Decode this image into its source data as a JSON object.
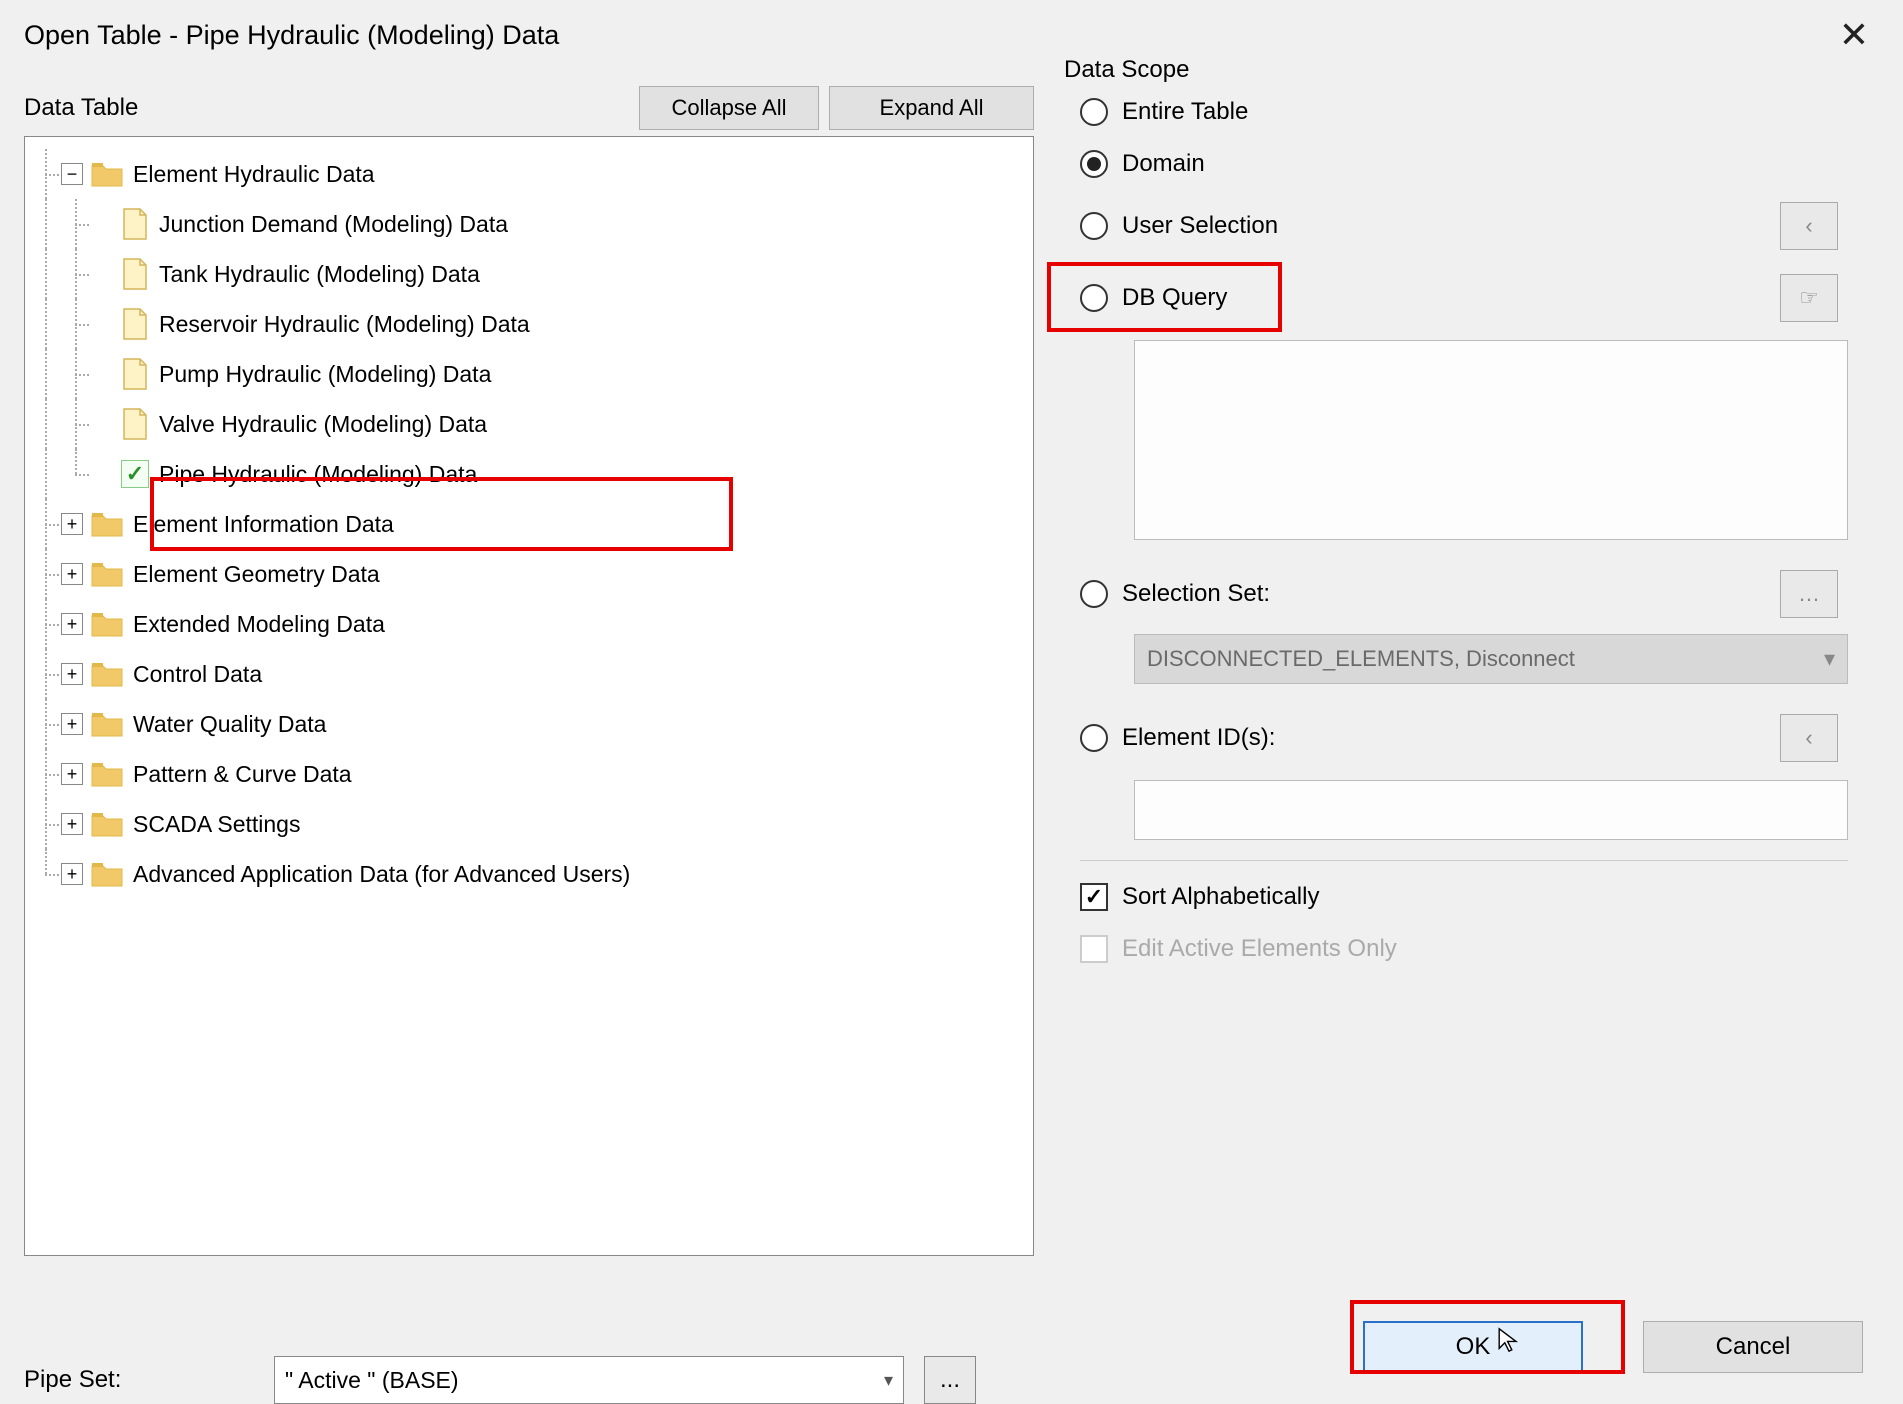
{
  "dialog": {
    "title": "Open Table - Pipe Hydraulic (Modeling) Data"
  },
  "dataTable": {
    "header": "Data Table",
    "collapse_btn": "Collapse All",
    "expand_btn": "Expand All",
    "tree": [
      {
        "depth": 0,
        "expander": "−",
        "icon": "folder",
        "label": "Element Hydraulic Data"
      },
      {
        "depth": 1,
        "expander": "",
        "icon": "file",
        "label": "Junction Demand (Modeling) Data"
      },
      {
        "depth": 1,
        "expander": "",
        "icon": "file",
        "label": "Tank Hydraulic (Modeling) Data"
      },
      {
        "depth": 1,
        "expander": "",
        "icon": "file",
        "label": "Reservoir Hydraulic (Modeling) Data"
      },
      {
        "depth": 1,
        "expander": "",
        "icon": "file",
        "label": "Pump Hydraulic (Modeling) Data"
      },
      {
        "depth": 1,
        "expander": "",
        "icon": "file",
        "label": "Valve Hydraulic (Modeling) Data"
      },
      {
        "depth": 1,
        "expander": "",
        "icon": "check",
        "label": "Pipe Hydraulic (Modeling) Data",
        "highlighted": true
      },
      {
        "depth": 0,
        "expander": "+",
        "icon": "folder",
        "label": "Element Information Data"
      },
      {
        "depth": 0,
        "expander": "+",
        "icon": "folder",
        "label": "Element Geometry Data"
      },
      {
        "depth": 0,
        "expander": "+",
        "icon": "folder",
        "label": "Extended Modeling Data"
      },
      {
        "depth": 0,
        "expander": "+",
        "icon": "folder",
        "label": "Control Data"
      },
      {
        "depth": 0,
        "expander": "+",
        "icon": "folder",
        "label": "Water Quality Data"
      },
      {
        "depth": 0,
        "expander": "+",
        "icon": "folder",
        "label": "Pattern & Curve Data"
      },
      {
        "depth": 0,
        "expander": "+",
        "icon": "folder",
        "label": "SCADA Settings"
      },
      {
        "depth": 0,
        "expander": "+",
        "icon": "folder",
        "label": "Advanced Application Data (for Advanced Users)"
      }
    ]
  },
  "pipeSet": {
    "label": "Pipe Set:",
    "value": "\" Active \" (BASE)",
    "mini": "..."
  },
  "dataScope": {
    "header": "Data Scope",
    "options": {
      "entire": "Entire Table",
      "domain": "Domain",
      "user_selection": "User Selection",
      "db_query": "DB Query",
      "selection_set": "Selection Set:",
      "element_ids": "Element ID(s):"
    },
    "selected": "domain",
    "selection_set_value": "DISCONNECTED_ELEMENTS, Disconnect",
    "sort_alpha_label": "Sort Alphabetically",
    "sort_alpha_checked": true,
    "edit_active_label": "Edit Active Elements Only",
    "edit_active_checked": false
  },
  "footer": {
    "ok": "OK",
    "cancel": "Cancel"
  },
  "colors": {
    "highlight_border": "#e60000",
    "primary_border": "#2a6fc9",
    "primary_bg": "#e3f0fb",
    "folder_fill": "#f2c968",
    "folder_tab": "#e3b84a",
    "file_fill": "#fdf3c6",
    "file_border": "#d4b55a"
  }
}
